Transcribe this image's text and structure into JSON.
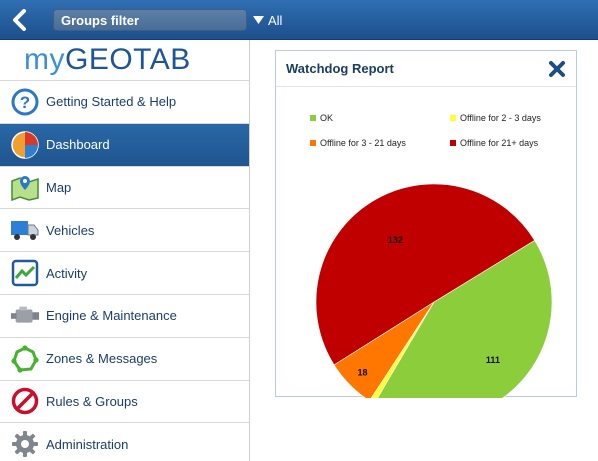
{
  "topbar": {
    "filter_label": "Groups filter",
    "filter_value": "All"
  },
  "sidebar": {
    "logo_my": "my",
    "logo_geotab": "GEOTAB",
    "items": [
      {
        "label": "Getting Started & Help",
        "icon": "help-icon",
        "active": false
      },
      {
        "label": "Dashboard",
        "icon": "pie-chart-icon",
        "active": true
      },
      {
        "label": "Map",
        "icon": "map-icon",
        "active": false
      },
      {
        "label": "Vehicles",
        "icon": "truck-icon",
        "active": false
      },
      {
        "label": "Activity",
        "icon": "activity-icon",
        "active": false
      },
      {
        "label": "Engine & Maintenance",
        "icon": "engine-icon",
        "active": false
      },
      {
        "label": "Zones & Messages",
        "icon": "zone-icon",
        "active": false
      },
      {
        "label": "Rules & Groups",
        "icon": "prohibited-icon",
        "active": false
      },
      {
        "label": "Administration",
        "icon": "gear-icon",
        "active": false
      }
    ]
  },
  "report": {
    "title": "Watchdog Report"
  },
  "chart_data": {
    "type": "pie",
    "title": "",
    "legend_placement": "top",
    "slices": [
      {
        "label": "OK",
        "value": 111,
        "color": "#8ccd3c"
      },
      {
        "label": "Offline for 2 - 3 days",
        "value": 2,
        "color": "#ffff33"
      },
      {
        "label": "Offline for 3 - 21 days",
        "value": 18,
        "color": "#ff7700"
      },
      {
        "label": "Offline for 21+ days",
        "value": 132,
        "color": "#c00000"
      }
    ]
  }
}
